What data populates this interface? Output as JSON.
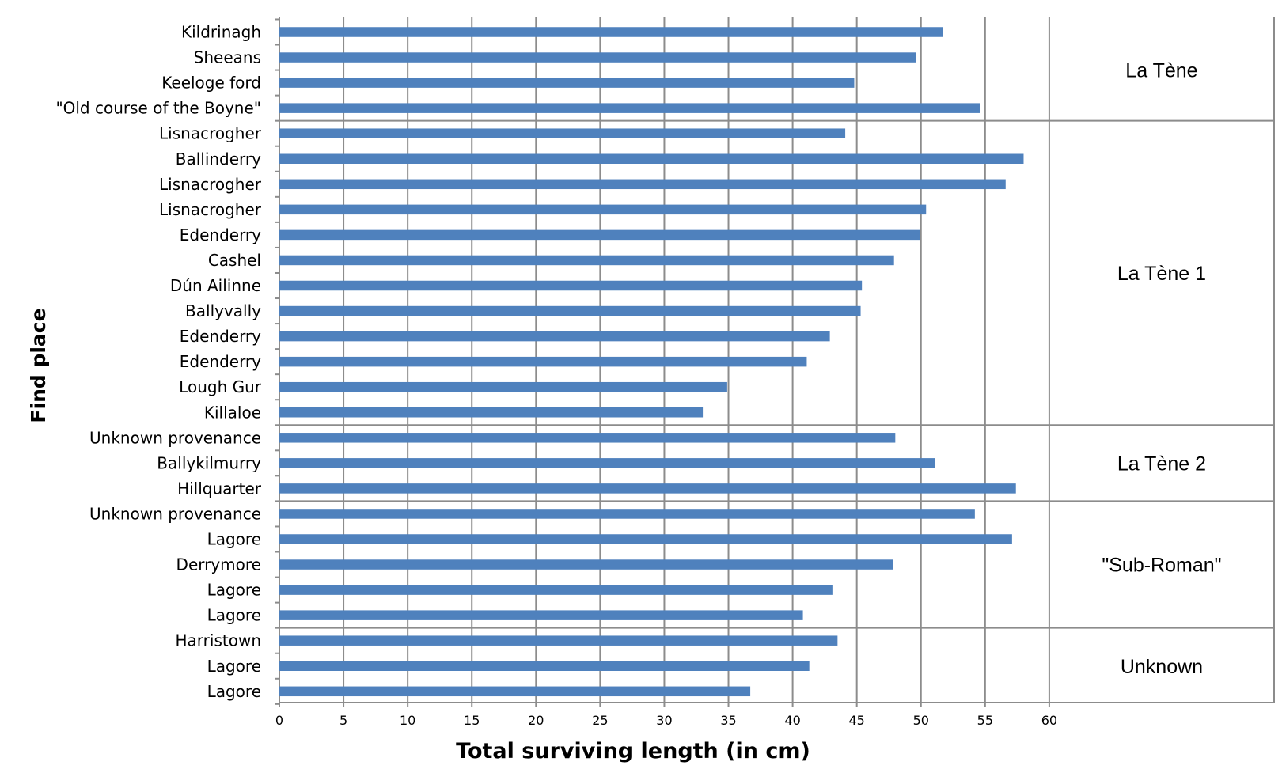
{
  "chart_data": {
    "type": "bar",
    "orientation": "horizontal",
    "title": "",
    "xlabel": "Total surviving length (in cm)",
    "ylabel": "Find place",
    "xlim": [
      0,
      60
    ],
    "xticks": [
      "0",
      "5",
      "10",
      "15",
      "20",
      "25",
      "30",
      "35",
      "40",
      "45",
      "50",
      "55",
      "60"
    ],
    "grid": "vertical",
    "bar_color": "#4f81bd",
    "categories": [
      "Kildrinagh",
      "Sheeans",
      "Keeloge ford",
      "\"Old course of the Boyne\"",
      "Lisnacrogher",
      "Ballinderry",
      "Lisnacrogher",
      "Lisnacrogher",
      "Edenderry",
      "Cashel",
      "Dún Ailinne",
      "Ballyvally",
      "Edenderry",
      "Edenderry",
      "Lough Gur",
      "Killaloe",
      "Unknown provenance",
      "Ballykilmurry",
      "Hillquarter",
      "Unknown provenance",
      "Lagore",
      "Derrymore",
      "Lagore",
      "Lagore",
      "Harristown",
      "Lagore",
      "Lagore"
    ],
    "values": [
      51.7,
      49.6,
      44.8,
      54.6,
      44.1,
      58.0,
      56.6,
      50.4,
      49.9,
      47.9,
      45.4,
      45.3,
      42.9,
      41.1,
      34.9,
      33.0,
      48.0,
      51.1,
      57.4,
      54.2,
      57.1,
      47.8,
      43.1,
      40.8,
      43.5,
      41.3,
      36.7
    ],
    "groups": [
      {
        "label": "La Tène",
        "start": 0,
        "count": 4
      },
      {
        "label": "La Tène 1",
        "start": 4,
        "count": 12
      },
      {
        "label": "La Tène 2",
        "start": 16,
        "count": 3
      },
      {
        "label": "\"Sub-Roman\"",
        "start": 19,
        "count": 5
      },
      {
        "label": "Unknown",
        "start": 24,
        "count": 3
      }
    ]
  }
}
